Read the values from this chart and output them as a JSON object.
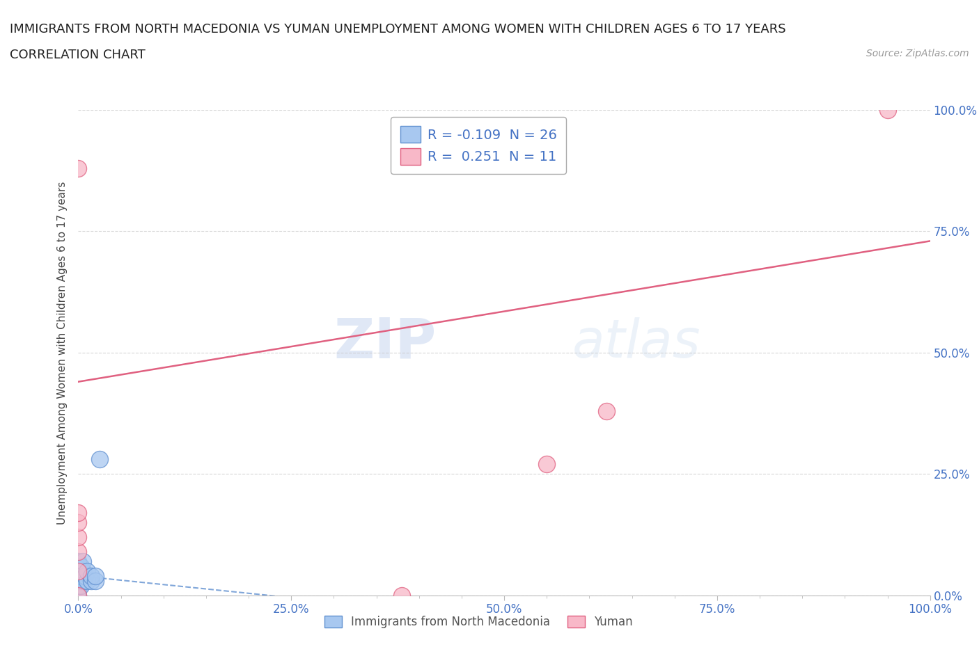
{
  "title_line1": "IMMIGRANTS FROM NORTH MACEDONIA VS YUMAN UNEMPLOYMENT AMONG WOMEN WITH CHILDREN AGES 6 TO 17 YEARS",
  "title_line2": "CORRELATION CHART",
  "source_text": "Source: ZipAtlas.com",
  "ylabel": "Unemployment Among Women with Children Ages 6 to 17 years",
  "xlim": [
    0.0,
    1.0
  ],
  "ylim": [
    0.0,
    1.0
  ],
  "xtick_labels": [
    "0.0%",
    "",
    "",
    "",
    "",
    "25.0%",
    "",
    "",
    "",
    "",
    "50.0%",
    "",
    "",
    "",
    "",
    "75.0%",
    "",
    "",
    "",
    "",
    "100.0%"
  ],
  "xtick_vals": [
    0.0,
    0.05,
    0.1,
    0.15,
    0.2,
    0.25,
    0.3,
    0.35,
    0.4,
    0.45,
    0.5,
    0.55,
    0.6,
    0.65,
    0.7,
    0.75,
    0.8,
    0.85,
    0.9,
    0.95,
    1.0
  ],
  "ytick_labels": [
    "0.0%",
    "25.0%",
    "50.0%",
    "75.0%",
    "100.0%"
  ],
  "ytick_vals": [
    0.0,
    0.25,
    0.5,
    0.75,
    1.0
  ],
  "blue_R": -0.109,
  "blue_N": 26,
  "pink_R": 0.251,
  "pink_N": 11,
  "blue_color": "#a8c8f0",
  "pink_color": "#f8b8c8",
  "blue_edge_color": "#6090d0",
  "pink_edge_color": "#e06080",
  "blue_series_x": [
    0.0,
    0.0,
    0.0,
    0.0,
    0.0,
    0.0,
    0.0,
    0.0,
    0.0,
    0.0,
    0.0,
    0.0,
    0.003,
    0.003,
    0.003,
    0.005,
    0.005,
    0.005,
    0.008,
    0.01,
    0.01,
    0.015,
    0.015,
    0.02,
    0.02,
    0.025
  ],
  "blue_series_y": [
    0.0,
    0.01,
    0.02,
    0.03,
    0.035,
    0.04,
    0.045,
    0.05,
    0.055,
    0.06,
    0.065,
    0.07,
    0.02,
    0.04,
    0.06,
    0.03,
    0.05,
    0.07,
    0.04,
    0.03,
    0.05,
    0.03,
    0.04,
    0.03,
    0.04,
    0.28
  ],
  "pink_series_x": [
    0.0,
    0.0,
    0.0,
    0.0,
    0.0,
    0.0,
    0.0,
    0.38,
    0.55,
    0.62,
    0.95
  ],
  "pink_series_y": [
    0.0,
    0.05,
    0.09,
    0.12,
    0.15,
    0.17,
    0.88,
    0.0,
    0.27,
    0.38,
    1.0
  ],
  "blue_trend_x": [
    0.0,
    0.25
  ],
  "blue_trend_y_start": 0.04,
  "blue_trend_y_end": -0.005,
  "pink_trend_x": [
    0.0,
    1.0
  ],
  "pink_trend_y_start": 0.44,
  "pink_trend_y_end": 0.73,
  "grid_color": "#cccccc",
  "grid_alpha": 0.8,
  "background_color": "#ffffff",
  "watermark_text1": "ZIP",
  "watermark_text2": "atlas",
  "legend_label_blue": "Immigrants from North Macedonia",
  "legend_label_pink": "Yuman",
  "tick_color": "#4472c4",
  "title_fontsize": 13,
  "subtitle_fontsize": 13,
  "axis_label_fontsize": 11,
  "tick_fontsize": 12
}
